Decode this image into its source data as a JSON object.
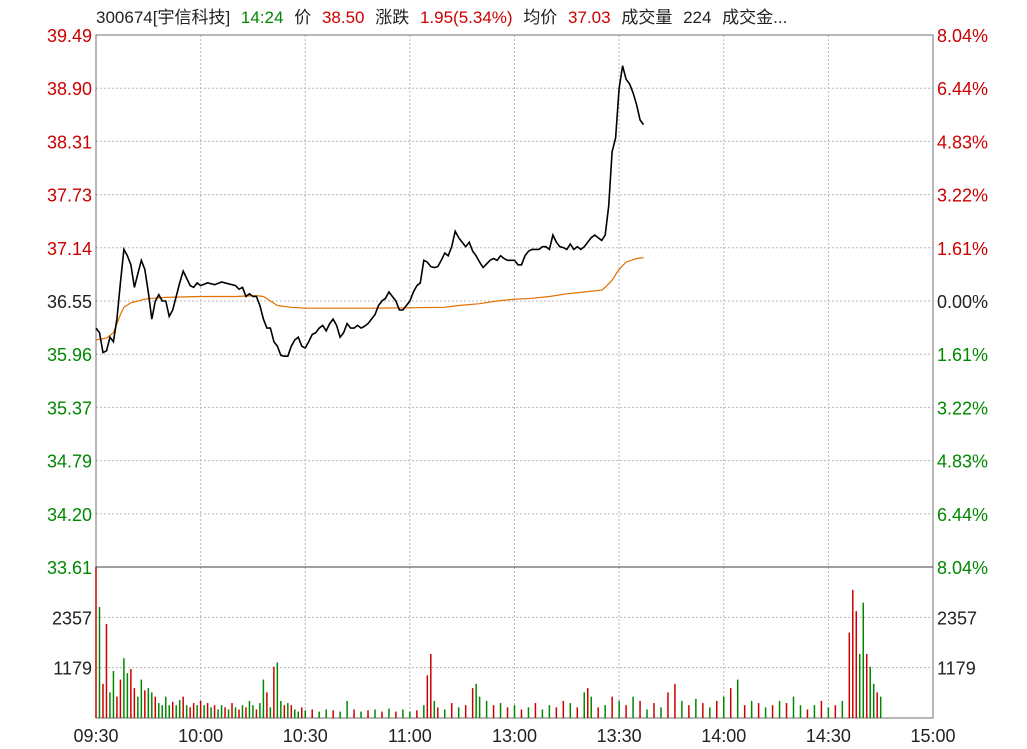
{
  "header": {
    "code_name": "300674[宇信科技]",
    "time": "14:24",
    "price_label": "价",
    "price": "38.50",
    "change_label": "涨跌",
    "change": "1.95(5.34%)",
    "avg_label": "均价",
    "avg": "37.03",
    "volume_label": "成交量",
    "volume": "224",
    "amount_label": "成交金..."
  },
  "colors": {
    "up": "#cc0000",
    "down": "#008800",
    "price_line": "#000000",
    "avg_line": "#e07000",
    "grid": "#b8b8b8",
    "border": "#707070"
  },
  "chart_data": {
    "type": "line",
    "price_axis": {
      "labels": [
        "39.49",
        "38.90",
        "38.31",
        "37.73",
        "37.14",
        "36.55",
        "35.96",
        "35.37",
        "34.79",
        "34.20",
        "33.61"
      ],
      "pct_labels": [
        "8.04%",
        "6.44%",
        "4.83%",
        "3.22%",
        "1.61%",
        "0.00%",
        "1.61%",
        "3.22%",
        "4.83%",
        "6.44%",
        "8.04%"
      ],
      "ylim": [
        33.61,
        39.49
      ],
      "prev_close": 36.55
    },
    "volume_axis": {
      "labels": [
        "2357",
        "1179"
      ],
      "ylim": [
        0,
        3536
      ]
    },
    "time_labels": [
      "09:30",
      "10:00",
      "10:30",
      "11:00",
      "13:00",
      "13:30",
      "14:00",
      "14:30",
      "15:00"
    ],
    "total_minutes": 240,
    "price": [
      [
        0,
        36.25
      ],
      [
        1,
        36.2
      ],
      [
        2,
        35.98
      ],
      [
        3,
        36.0
      ],
      [
        4,
        36.15
      ],
      [
        5,
        36.1
      ],
      [
        6,
        36.35
      ],
      [
        7,
        36.75
      ],
      [
        8,
        37.12
      ],
      [
        9,
        37.05
      ],
      [
        10,
        36.95
      ],
      [
        11,
        36.7
      ],
      [
        12,
        36.85
      ],
      [
        13,
        37.0
      ],
      [
        14,
        36.9
      ],
      [
        15,
        36.65
      ],
      [
        16,
        36.35
      ],
      [
        17,
        36.55
      ],
      [
        18,
        36.62
      ],
      [
        19,
        36.55
      ],
      [
        20,
        36.55
      ],
      [
        21,
        36.38
      ],
      [
        22,
        36.45
      ],
      [
        23,
        36.6
      ],
      [
        24,
        36.75
      ],
      [
        25,
        36.88
      ],
      [
        26,
        36.8
      ],
      [
        27,
        36.72
      ],
      [
        28,
        36.7
      ],
      [
        29,
        36.75
      ],
      [
        30,
        36.72
      ],
      [
        32,
        36.75
      ],
      [
        34,
        36.73
      ],
      [
        36,
        36.76
      ],
      [
        38,
        36.74
      ],
      [
        40,
        36.72
      ],
      [
        41,
        36.68
      ],
      [
        42,
        36.7
      ],
      [
        43,
        36.6
      ],
      [
        44,
        36.63
      ],
      [
        45,
        36.6
      ],
      [
        46,
        36.6
      ],
      [
        47,
        36.5
      ],
      [
        48,
        36.35
      ],
      [
        49,
        36.25
      ],
      [
        50,
        36.25
      ],
      [
        51,
        36.1
      ],
      [
        52,
        36.05
      ],
      [
        53,
        35.95
      ],
      [
        54,
        35.94
      ],
      [
        55,
        35.94
      ],
      [
        56,
        36.05
      ],
      [
        57,
        36.12
      ],
      [
        58,
        36.15
      ],
      [
        59,
        36.05
      ],
      [
        60,
        36.03
      ],
      [
        61,
        36.1
      ],
      [
        62,
        36.18
      ],
      [
        63,
        36.2
      ],
      [
        64,
        36.25
      ],
      [
        65,
        36.28
      ],
      [
        66,
        36.22
      ],
      [
        67,
        36.3
      ],
      [
        68,
        36.35
      ],
      [
        69,
        36.28
      ],
      [
        70,
        36.15
      ],
      [
        71,
        36.2
      ],
      [
        72,
        36.3
      ],
      [
        73,
        36.25
      ],
      [
        74,
        36.25
      ],
      [
        75,
        36.28
      ],
      [
        76,
        36.25
      ],
      [
        77,
        36.27
      ],
      [
        78,
        36.3
      ],
      [
        79,
        36.35
      ],
      [
        80,
        36.4
      ],
      [
        81,
        36.5
      ],
      [
        82,
        36.55
      ],
      [
        83,
        36.58
      ],
      [
        84,
        36.65
      ],
      [
        85,
        36.6
      ],
      [
        86,
        36.55
      ],
      [
        87,
        36.45
      ],
      [
        88,
        36.45
      ],
      [
        89,
        36.5
      ],
      [
        90,
        36.55
      ],
      [
        91,
        36.65
      ],
      [
        92,
        36.72
      ],
      [
        93,
        36.75
      ],
      [
        94,
        37.0
      ],
      [
        95,
        36.98
      ],
      [
        96,
        36.93
      ],
      [
        97,
        36.92
      ],
      [
        98,
        36.93
      ],
      [
        99,
        37.0
      ],
      [
        100,
        37.08
      ],
      [
        101,
        37.05
      ],
      [
        102,
        37.15
      ],
      [
        103,
        37.32
      ],
      [
        104,
        37.25
      ],
      [
        105,
        37.2
      ],
      [
        106,
        37.15
      ],
      [
        107,
        37.2
      ],
      [
        108,
        37.1
      ],
      [
        109,
        37.05
      ],
      [
        110,
        36.98
      ],
      [
        111,
        36.92
      ],
      [
        112,
        36.96
      ],
      [
        113,
        37.0
      ],
      [
        114,
        37.02
      ],
      [
        115,
        37.0
      ],
      [
        116,
        37.05
      ],
      [
        117,
        37.02
      ],
      [
        118,
        37.0
      ],
      [
        119,
        37.0
      ],
      [
        120,
        37.0
      ],
      [
        121,
        36.95
      ],
      [
        122,
        36.95
      ],
      [
        123,
        37.05
      ],
      [
        124,
        37.1
      ],
      [
        125,
        37.12
      ],
      [
        126,
        37.12
      ],
      [
        127,
        37.12
      ],
      [
        128,
        37.15
      ],
      [
        129,
        37.15
      ],
      [
        130,
        37.12
      ],
      [
        131,
        37.28
      ],
      [
        132,
        37.2
      ],
      [
        133,
        37.15
      ],
      [
        134,
        37.14
      ],
      [
        135,
        37.12
      ],
      [
        136,
        37.18
      ],
      [
        137,
        37.12
      ],
      [
        138,
        37.15
      ],
      [
        139,
        37.12
      ],
      [
        140,
        37.15
      ],
      [
        141,
        37.2
      ],
      [
        142,
        37.25
      ],
      [
        143,
        37.28
      ],
      [
        144,
        37.25
      ],
      [
        145,
        37.22
      ],
      [
        146,
        37.28
      ],
      [
        147,
        37.6
      ],
      [
        148,
        38.2
      ],
      [
        149,
        38.35
      ],
      [
        150,
        38.9
      ],
      [
        151,
        39.15
      ],
      [
        152,
        39.0
      ],
      [
        153,
        38.95
      ],
      [
        154,
        38.85
      ],
      [
        155,
        38.72
      ],
      [
        156,
        38.55
      ],
      [
        157,
        38.5
      ]
    ],
    "avg": [
      [
        0,
        36.12
      ],
      [
        3,
        36.14
      ],
      [
        5,
        36.2
      ],
      [
        6,
        36.3
      ],
      [
        7,
        36.4
      ],
      [
        8,
        36.48
      ],
      [
        10,
        36.53
      ],
      [
        12,
        36.55
      ],
      [
        14,
        36.57
      ],
      [
        16,
        36.58
      ],
      [
        20,
        36.59
      ],
      [
        30,
        36.6
      ],
      [
        40,
        36.6
      ],
      [
        46,
        36.61
      ],
      [
        48,
        36.6
      ],
      [
        50,
        36.55
      ],
      [
        52,
        36.5
      ],
      [
        56,
        36.48
      ],
      [
        60,
        36.47
      ],
      [
        80,
        36.47
      ],
      [
        100,
        36.48
      ],
      [
        102,
        36.49
      ],
      [
        104,
        36.5
      ],
      [
        110,
        36.52
      ],
      [
        115,
        36.55
      ],
      [
        120,
        36.57
      ],
      [
        125,
        36.58
      ],
      [
        130,
        36.6
      ],
      [
        135,
        36.63
      ],
      [
        140,
        36.65
      ],
      [
        145,
        36.67
      ],
      [
        146,
        36.7
      ],
      [
        148,
        36.78
      ],
      [
        150,
        36.9
      ],
      [
        152,
        36.98
      ],
      [
        155,
        37.02
      ],
      [
        157,
        37.03
      ]
    ],
    "volume": [
      [
        0,
        3536,
        "up"
      ],
      [
        1,
        2600,
        "down"
      ],
      [
        2,
        800,
        "up"
      ],
      [
        3,
        2200,
        "up"
      ],
      [
        4,
        600,
        "down"
      ],
      [
        5,
        1100,
        "down"
      ],
      [
        6,
        500,
        "up"
      ],
      [
        7,
        900,
        "up"
      ],
      [
        8,
        1400,
        "down"
      ],
      [
        9,
        1050,
        "down"
      ],
      [
        10,
        1150,
        "up"
      ],
      [
        11,
        700,
        "up"
      ],
      [
        12,
        500,
        "down"
      ],
      [
        13,
        900,
        "down"
      ],
      [
        14,
        650,
        "up"
      ],
      [
        15,
        700,
        "down"
      ],
      [
        16,
        600,
        "down"
      ],
      [
        17,
        500,
        "up"
      ],
      [
        18,
        350,
        "down"
      ],
      [
        19,
        300,
        "down"
      ],
      [
        20,
        500,
        "down"
      ],
      [
        21,
        300,
        "down"
      ],
      [
        22,
        380,
        "up"
      ],
      [
        23,
        300,
        "down"
      ],
      [
        24,
        420,
        "down"
      ],
      [
        25,
        500,
        "up"
      ],
      [
        26,
        300,
        "down"
      ],
      [
        27,
        250,
        "up"
      ],
      [
        28,
        350,
        "up"
      ],
      [
        29,
        300,
        "down"
      ],
      [
        30,
        400,
        "up"
      ],
      [
        31,
        300,
        "down"
      ],
      [
        32,
        350,
        "up"
      ],
      [
        33,
        250,
        "down"
      ],
      [
        34,
        300,
        "up"
      ],
      [
        35,
        200,
        "down"
      ],
      [
        36,
        300,
        "down"
      ],
      [
        37,
        250,
        "up"
      ],
      [
        38,
        200,
        "down"
      ],
      [
        39,
        350,
        "up"
      ],
      [
        40,
        250,
        "down"
      ],
      [
        41,
        200,
        "up"
      ],
      [
        42,
        300,
        "down"
      ],
      [
        43,
        250,
        "up"
      ],
      [
        44,
        400,
        "down"
      ],
      [
        45,
        300,
        "down"
      ],
      [
        46,
        200,
        "up"
      ],
      [
        47,
        350,
        "down"
      ],
      [
        48,
        900,
        "down"
      ],
      [
        49,
        600,
        "up"
      ],
      [
        50,
        250,
        "down"
      ],
      [
        51,
        1200,
        "up"
      ],
      [
        52,
        1300,
        "down"
      ],
      [
        53,
        400,
        "down"
      ],
      [
        54,
        300,
        "up"
      ],
      [
        55,
        350,
        "down"
      ],
      [
        56,
        300,
        "up"
      ],
      [
        57,
        200,
        "down"
      ],
      [
        58,
        150,
        "down"
      ],
      [
        59,
        250,
        "up"
      ],
      [
        60,
        180,
        "down"
      ],
      [
        62,
        200,
        "up"
      ],
      [
        64,
        150,
        "down"
      ],
      [
        66,
        200,
        "down"
      ],
      [
        68,
        180,
        "up"
      ],
      [
        70,
        150,
        "down"
      ],
      [
        72,
        400,
        "down"
      ],
      [
        74,
        200,
        "up"
      ],
      [
        76,
        150,
        "down"
      ],
      [
        78,
        180,
        "up"
      ],
      [
        80,
        200,
        "down"
      ],
      [
        82,
        150,
        "up"
      ],
      [
        84,
        220,
        "down"
      ],
      [
        86,
        150,
        "up"
      ],
      [
        88,
        200,
        "down"
      ],
      [
        90,
        150,
        "down"
      ],
      [
        92,
        180,
        "up"
      ],
      [
        94,
        300,
        "down"
      ],
      [
        95,
        1000,
        "up"
      ],
      [
        96,
        1500,
        "up"
      ],
      [
        97,
        400,
        "down"
      ],
      [
        98,
        250,
        "up"
      ],
      [
        100,
        200,
        "down"
      ],
      [
        102,
        350,
        "up"
      ],
      [
        104,
        250,
        "down"
      ],
      [
        106,
        300,
        "up"
      ],
      [
        108,
        700,
        "up"
      ],
      [
        109,
        800,
        "down"
      ],
      [
        110,
        500,
        "down"
      ],
      [
        112,
        400,
        "down"
      ],
      [
        114,
        300,
        "up"
      ],
      [
        116,
        350,
        "down"
      ],
      [
        118,
        250,
        "up"
      ],
      [
        120,
        300,
        "down"
      ],
      [
        122,
        200,
        "up"
      ],
      [
        124,
        250,
        "down"
      ],
      [
        126,
        350,
        "up"
      ],
      [
        128,
        200,
        "down"
      ],
      [
        130,
        300,
        "down"
      ],
      [
        132,
        250,
        "up"
      ],
      [
        134,
        400,
        "up"
      ],
      [
        136,
        350,
        "down"
      ],
      [
        138,
        250,
        "up"
      ],
      [
        140,
        600,
        "down"
      ],
      [
        141,
        700,
        "up"
      ],
      [
        142,
        500,
        "down"
      ],
      [
        144,
        250,
        "up"
      ],
      [
        146,
        300,
        "down"
      ],
      [
        148,
        500,
        "up"
      ],
      [
        150,
        400,
        "down"
      ],
      [
        152,
        300,
        "up"
      ],
      [
        154,
        500,
        "down"
      ],
      [
        156,
        400,
        "up"
      ],
      [
        158,
        200,
        "down"
      ],
      [
        160,
        350,
        "up"
      ],
      [
        162,
        250,
        "down"
      ],
      [
        164,
        600,
        "up"
      ],
      [
        166,
        800,
        "up"
      ],
      [
        168,
        400,
        "down"
      ],
      [
        170,
        300,
        "up"
      ],
      [
        172,
        450,
        "down"
      ],
      [
        174,
        350,
        "up"
      ],
      [
        176,
        250,
        "down"
      ],
      [
        178,
        400,
        "up"
      ],
      [
        180,
        500,
        "down"
      ],
      [
        182,
        700,
        "up"
      ],
      [
        184,
        900,
        "down"
      ],
      [
        186,
        300,
        "up"
      ],
      [
        188,
        400,
        "down"
      ],
      [
        190,
        350,
        "up"
      ],
      [
        192,
        250,
        "down"
      ],
      [
        194,
        300,
        "up"
      ],
      [
        196,
        400,
        "down"
      ],
      [
        198,
        350,
        "up"
      ],
      [
        200,
        500,
        "down"
      ],
      [
        202,
        300,
        "down"
      ],
      [
        204,
        200,
        "up"
      ],
      [
        206,
        300,
        "down"
      ],
      [
        208,
        400,
        "up"
      ],
      [
        210,
        250,
        "down"
      ],
      [
        212,
        300,
        "up"
      ],
      [
        214,
        400,
        "down"
      ],
      [
        216,
        2000,
        "up"
      ],
      [
        217,
        3000,
        "up"
      ],
      [
        218,
        2500,
        "up"
      ],
      [
        219,
        1500,
        "down"
      ],
      [
        220,
        2700,
        "down"
      ],
      [
        221,
        1500,
        "up"
      ],
      [
        222,
        1200,
        "down"
      ],
      [
        223,
        800,
        "down"
      ],
      [
        224,
        600,
        "up"
      ],
      [
        225,
        500,
        "down"
      ]
    ]
  }
}
